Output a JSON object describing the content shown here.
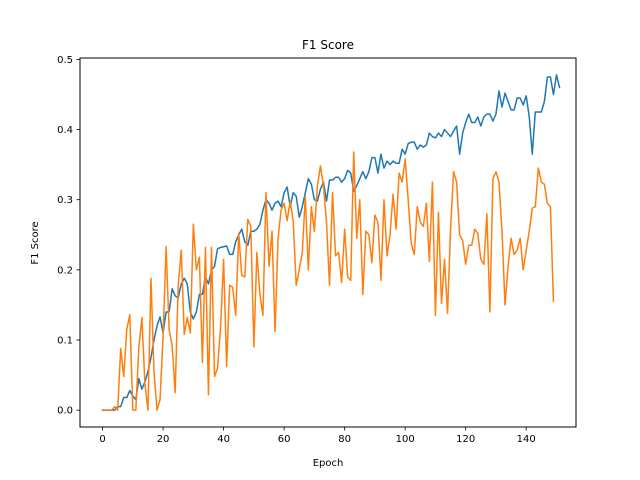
{
  "chart_data": {
    "type": "line",
    "title": "F1 Score",
    "xlabel": "Epoch",
    "ylabel": "F1 Score",
    "xlim": [
      -7.45,
      156.45
    ],
    "ylim": [
      -0.024,
      0.502
    ],
    "xticks": [
      0,
      20,
      40,
      60,
      80,
      100,
      120,
      140
    ],
    "yticks": [
      0.0,
      0.1,
      0.2,
      0.3,
      0.4,
      0.5
    ],
    "ytick_labels": [
      "0.0",
      "0.1",
      "0.2",
      "0.3",
      "0.4",
      "0.5"
    ],
    "grid": false,
    "legend": "none",
    "series": [
      {
        "color": "#1f77b4",
        "values": [
          0.0,
          0.0,
          0.0,
          0.0,
          0.0,
          0.005,
          0.005,
          0.018,
          0.018,
          0.028,
          0.02,
          0.015,
          0.045,
          0.03,
          0.04,
          0.055,
          0.075,
          0.1,
          0.12,
          0.133,
          0.11,
          0.14,
          0.14,
          0.173,
          0.163,
          0.16,
          0.18,
          0.188,
          0.18,
          0.14,
          0.13,
          0.14,
          0.165,
          0.165,
          0.19,
          0.18,
          0.2,
          0.205,
          0.23,
          0.232,
          0.233,
          0.234,
          0.222,
          0.222,
          0.24,
          0.25,
          0.258,
          0.24,
          0.235,
          0.255,
          0.255,
          0.258,
          0.265,
          0.285,
          0.3,
          0.295,
          0.285,
          0.295,
          0.298,
          0.29,
          0.31,
          0.318,
          0.29,
          0.31,
          0.305,
          0.275,
          0.29,
          0.31,
          0.33,
          0.322,
          0.3,
          0.298,
          0.315,
          0.325,
          0.298,
          0.328,
          0.328,
          0.332,
          0.332,
          0.325,
          0.33,
          0.342,
          0.338,
          0.312,
          0.32,
          0.33,
          0.34,
          0.33,
          0.34,
          0.36,
          0.36,
          0.338,
          0.365,
          0.345,
          0.355,
          0.35,
          0.355,
          0.352,
          0.352,
          0.372,
          0.365,
          0.38,
          0.382,
          0.382,
          0.372,
          0.378,
          0.375,
          0.378,
          0.395,
          0.39,
          0.388,
          0.395,
          0.39,
          0.4,
          0.395,
          0.39,
          0.398,
          0.405,
          0.365,
          0.395,
          0.41,
          0.422,
          0.41,
          0.41,
          0.418,
          0.405,
          0.418,
          0.422,
          0.422,
          0.412,
          0.422,
          0.455,
          0.432,
          0.452,
          0.44,
          0.428,
          0.428,
          0.445,
          0.445,
          0.435,
          0.448,
          0.418,
          0.365,
          0.425,
          0.425,
          0.425,
          0.44,
          0.475,
          0.475,
          0.45,
          0.478,
          0.46
        ]
      },
      {
        "color": "#ff7f0e",
        "values": [
          0.0,
          0.0,
          0.0,
          0.0,
          0.005,
          0.0,
          0.088,
          0.048,
          0.115,
          0.136,
          0.0,
          0.0,
          0.09,
          0.132,
          0.038,
          0.0,
          0.188,
          0.055,
          0.0,
          0.015,
          0.105,
          0.233,
          0.115,
          0.092,
          0.025,
          0.178,
          0.228,
          0.108,
          0.132,
          0.11,
          0.265,
          0.2,
          0.218,
          0.068,
          0.232,
          0.022,
          0.232,
          0.048,
          0.06,
          0.118,
          0.215,
          0.062,
          0.178,
          0.175,
          0.135,
          0.252,
          0.192,
          0.19,
          0.272,
          0.262,
          0.09,
          0.225,
          0.165,
          0.135,
          0.31,
          0.205,
          0.255,
          0.112,
          0.245,
          0.285,
          0.295,
          0.27,
          0.298,
          0.27,
          0.178,
          0.2,
          0.225,
          0.305,
          0.2,
          0.29,
          0.255,
          0.32,
          0.348,
          0.32,
          0.268,
          0.178,
          0.31,
          0.22,
          0.225,
          0.182,
          0.258,
          0.19,
          0.185,
          0.368,
          0.245,
          0.3,
          0.165,
          0.255,
          0.25,
          0.21,
          0.278,
          0.268,
          0.185,
          0.3,
          0.22,
          0.25,
          0.308,
          0.258,
          0.338,
          0.325,
          0.358,
          0.3,
          0.238,
          0.222,
          0.29,
          0.268,
          0.262,
          0.295,
          0.212,
          0.325,
          0.135,
          0.282,
          0.152,
          0.215,
          0.138,
          0.258,
          0.34,
          0.325,
          0.25,
          0.242,
          0.208,
          0.235,
          0.235,
          0.258,
          0.252,
          0.215,
          0.208,
          0.28,
          0.14,
          0.33,
          0.34,
          0.325,
          0.255,
          0.15,
          0.205,
          0.245,
          0.222,
          0.228,
          0.245,
          0.2,
          0.228,
          0.255,
          0.288,
          0.29,
          0.345,
          0.325,
          0.322,
          0.295,
          0.29,
          0.155
        ]
      }
    ]
  }
}
